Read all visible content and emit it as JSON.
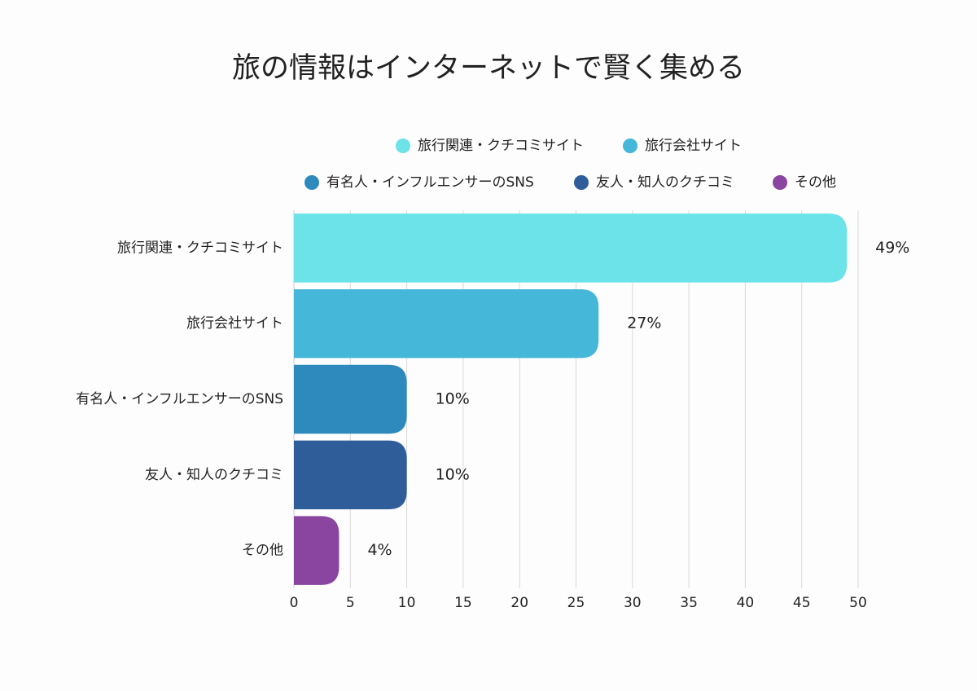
{
  "chart_data": {
    "type": "bar",
    "title": "旅の情報はインターネットで賢く集める",
    "categories": [
      "旅行関連・クチコミサイト",
      "旅行会社サイト",
      "有名人・インフルエンサーのSNS",
      "友人・知人のクチコミ",
      "その他"
    ],
    "values": [
      49,
      27,
      10,
      10,
      4
    ],
    "value_labels": [
      "49%",
      "27%",
      "10%",
      "10%",
      "4%"
    ],
    "colors": [
      "#6ce3e8",
      "#45b7d8",
      "#2e8abd",
      "#2f5d9a",
      "#8a45a0"
    ],
    "xlim": [
      0,
      50
    ],
    "xticks": [
      0,
      5,
      10,
      15,
      20,
      25,
      30,
      35,
      40,
      45,
      50
    ],
    "grid": true
  }
}
